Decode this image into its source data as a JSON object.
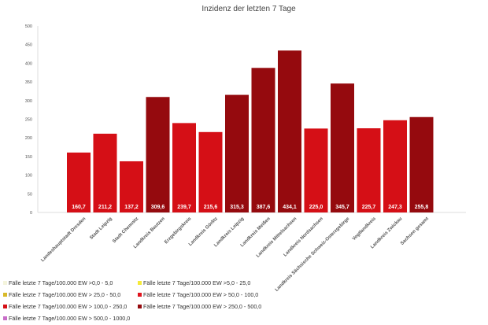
{
  "chart_data": {
    "type": "bar",
    "title": "Inzidenz der letzten 7 Tage",
    "xlabel": "",
    "ylabel": "",
    "ylim": [
      0,
      500
    ],
    "yticks": [
      0,
      50,
      100,
      150,
      200,
      250,
      300,
      350,
      400,
      450,
      500
    ],
    "grid": false,
    "legend_position": "bottom-left",
    "categories": [
      "Landeshauptstadt Dresden",
      "Stadt Leipzig",
      "Stadt Chemnitz",
      "Landkreis Bautzen",
      "Erzgebirgskreis",
      "Landkreis Görlitz",
      "Landkreis Leipzig",
      "Landkreis Meißen",
      "Landkreis Mittelsachsen",
      "Landkreis Nordsachsen",
      "Landkreis Sächsische Schweiz-Osterzgebirge",
      "Vogtlandkreis",
      "Landkreis Zwickau",
      "Sachsen gesamt"
    ],
    "values": [
      160.7,
      211.2,
      137.2,
      309.6,
      239.7,
      215.6,
      315.3,
      387.6,
      434.1,
      225.0,
      345.7,
      225.7,
      247.3,
      255.8
    ],
    "value_labels": [
      "160,7",
      "211,2",
      "137,2",
      "309,6",
      "239,7",
      "215,6",
      "315,3",
      "387,6",
      "434,1",
      "225,0",
      "345,7",
      "225,7",
      "247,3",
      "255,8"
    ],
    "legend": [
      {
        "label": "Fälle letzte 7 Tage/100.000 EW >0,0 - 5,0",
        "color": "#f4f4dc",
        "min": 0,
        "max": 5
      },
      {
        "label": "Fälle letzte 7 Tage/100.000 EW >5,0 - 25,0",
        "color": "#f5ea3a",
        "min": 5,
        "max": 25
      },
      {
        "label": "Fälle letzte 7 Tage/100.000 EW > 25,0 - 50,0",
        "color": "#d8b92a",
        "min": 25,
        "max": 50
      },
      {
        "label": "Fälle letzte 7 Tage/100.000 EW > 50,0 - 100,0",
        "color": "#e0141e",
        "min": 50,
        "max": 100
      },
      {
        "label": "Fälle letzte 7 Tage/100.000 EW > 100,0 - 250,0",
        "color": "#d50f16",
        "min": 100,
        "max": 250
      },
      {
        "label": "Fälle letzte 7 Tage/100.000 EW > 250,0 - 500,0",
        "color": "#950a0e",
        "min": 250,
        "max": 500
      },
      {
        "label": "Fälle letzte 7 Tage/100.000 EW > 500,0 - 1000,0",
        "color": "#c86ec8",
        "min": 500,
        "max": 1000
      }
    ]
  }
}
